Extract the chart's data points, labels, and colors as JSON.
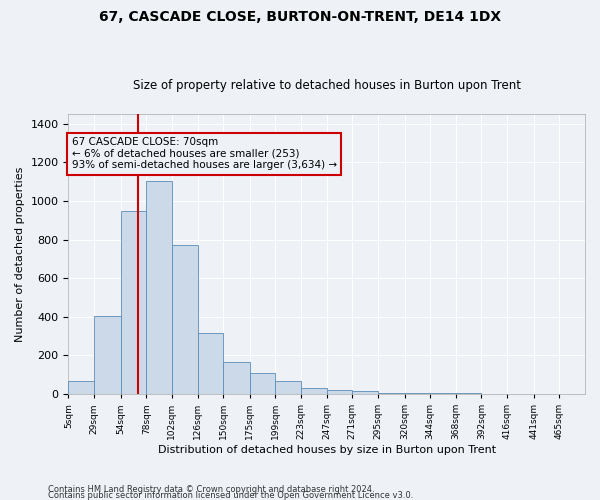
{
  "title": "67, CASCADE CLOSE, BURTON-ON-TRENT, DE14 1DX",
  "subtitle": "Size of property relative to detached houses in Burton upon Trent",
  "xlabel": "Distribution of detached houses by size in Burton upon Trent",
  "ylabel": "Number of detached properties",
  "footnote1": "Contains HM Land Registry data © Crown copyright and database right 2024.",
  "footnote2": "Contains public sector information licensed under the Open Government Licence v3.0.",
  "annotation_title": "67 CASCADE CLOSE: 70sqm",
  "annotation_line1": "← 6% of detached houses are smaller (253)",
  "annotation_line2": "93% of semi-detached houses are larger (3,634) →",
  "property_size": 70,
  "bar_color": "#ccd9e8",
  "bar_edge_color": "#5b8db8",
  "vline_color": "#cc0000",
  "annotation_box_color": "#cc0000",
  "bin_edges": [
    5,
    29,
    54,
    78,
    102,
    126,
    150,
    175,
    199,
    223,
    247,
    271,
    295,
    320,
    344,
    368,
    392,
    416,
    441,
    465,
    489
  ],
  "bar_heights": [
    65,
    405,
    950,
    1105,
    770,
    315,
    165,
    110,
    65,
    30,
    20,
    15,
    5,
    5,
    5,
    5,
    0,
    0,
    0,
    0
  ],
  "ylim": [
    0,
    1450
  ],
  "yticks": [
    0,
    200,
    400,
    600,
    800,
    1000,
    1200,
    1400
  ],
  "background_color": "#eef2f7",
  "grid_color": "#ffffff",
  "title_fontsize": 10,
  "subtitle_fontsize": 8.5,
  "ylabel_fontsize": 8,
  "xlabel_fontsize": 8,
  "ytick_fontsize": 8,
  "xtick_fontsize": 6.5
}
